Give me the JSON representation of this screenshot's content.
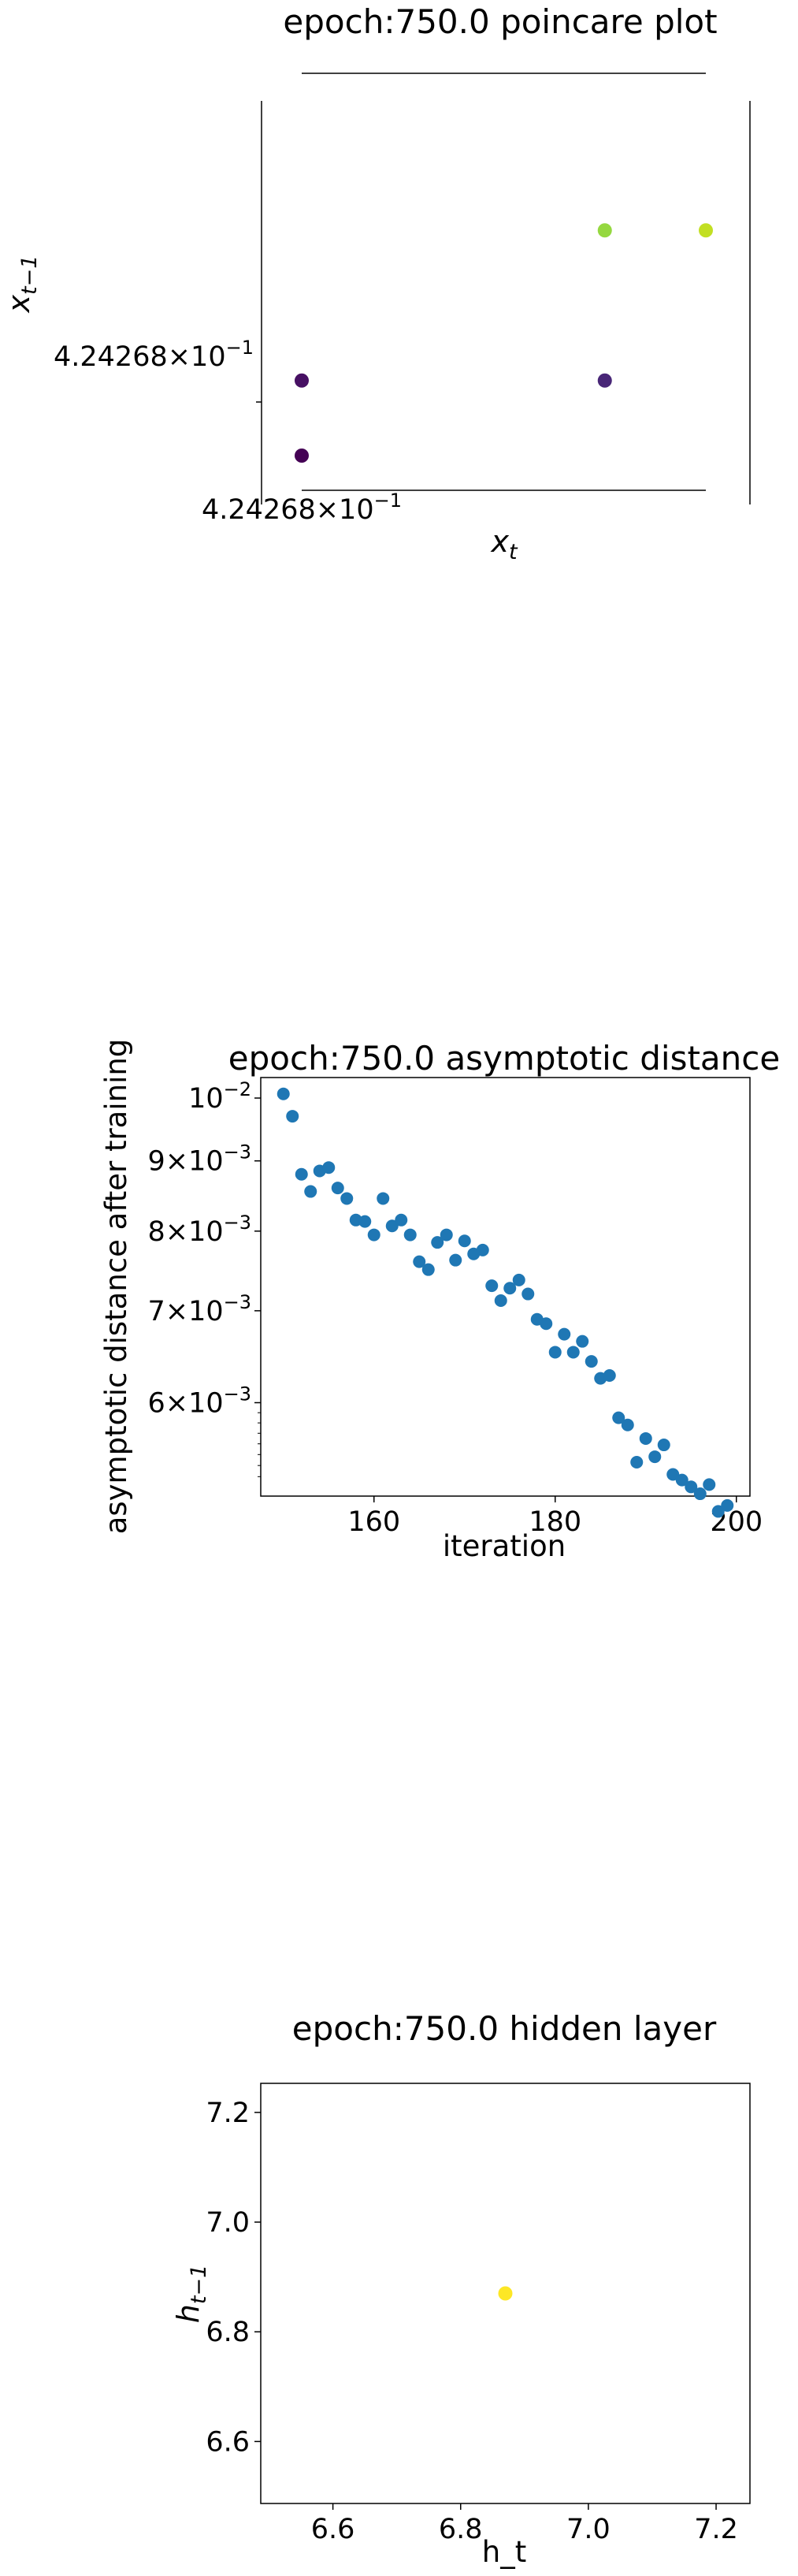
{
  "chart_data": [
    {
      "type": "scatter",
      "title": "epoch:750.0 poincare plot",
      "xlabel": "x",
      "xlabel_sub": "t",
      "ylabel": "x",
      "ylabel_sub": "t−1",
      "x_tick_label": "4.24268×10",
      "x_tick_exp": "−1",
      "y_tick_label": "4.24268×10",
      "y_tick_exp": "−1",
      "xlim": [
        0,
        1
      ],
      "ylim": [
        0,
        1
      ],
      "grid": false,
      "points": [
        {
          "x": 0.0,
          "y": 0.0,
          "color": "#440154"
        },
        {
          "x": 0.0,
          "y": 0.25,
          "color": "#471063"
        },
        {
          "x": 0.75,
          "y": 0.25,
          "color": "#482677"
        },
        {
          "x": 0.75,
          "y": 0.75,
          "color": "#95d840"
        },
        {
          "x": 1.0,
          "y": 0.75,
          "color": "#c2df23"
        }
      ]
    },
    {
      "type": "scatter",
      "title": "epoch:750.0 asymptotic distance",
      "xlabel": "iteration",
      "ylabel": "asymptotic distance after training",
      "xlim": [
        147.5,
        201.5
      ],
      "ylim": [
        0.00513,
        0.01035
      ],
      "yscale": "log",
      "x_ticks": [
        160,
        180,
        200
      ],
      "y_ticks": [
        {
          "value": 0.01,
          "mantissa": "10",
          "exp": "−2"
        },
        {
          "value": 0.009,
          "mantissa": "9×10",
          "exp": "−3"
        },
        {
          "value": 0.008,
          "mantissa": "8×10",
          "exp": "−3"
        },
        {
          "value": 0.007,
          "mantissa": "7×10",
          "exp": "−3"
        },
        {
          "value": 0.006,
          "mantissa": "6×10",
          "exp": "−3"
        }
      ],
      "color": "#1f77b4",
      "grid": false,
      "x": [
        150,
        151,
        152,
        153,
        154,
        155,
        156,
        157,
        158,
        159,
        160,
        161,
        162,
        163,
        164,
        165,
        166,
        167,
        168,
        169,
        170,
        171,
        172,
        173,
        174,
        175,
        176,
        177,
        178,
        179,
        180,
        181,
        182,
        183,
        184,
        185,
        186,
        187,
        188,
        189,
        190,
        191,
        192,
        193,
        194,
        195,
        196,
        197,
        198,
        199
      ],
      "y": [
        0.01007,
        0.0097,
        0.0088,
        0.00855,
        0.00885,
        0.0089,
        0.0086,
        0.00845,
        0.00815,
        0.00813,
        0.00795,
        0.00845,
        0.00807,
        0.00815,
        0.00795,
        0.0076,
        0.0075,
        0.00785,
        0.00795,
        0.00762,
        0.00787,
        0.0077,
        0.00775,
        0.0073,
        0.00712,
        0.00727,
        0.00737,
        0.0072,
        0.0069,
        0.00685,
        0.00653,
        0.00673,
        0.00653,
        0.00665,
        0.00643,
        0.00625,
        0.00628,
        0.00585,
        0.00578,
        0.00543,
        0.00565,
        0.00548,
        0.00559,
        0.00532,
        0.00527,
        0.00521,
        0.00515,
        0.00523,
        0.005,
        0.00505
      ]
    },
    {
      "type": "scatter",
      "title": "epoch:750.0 hidden layer",
      "xlabel": "h_t",
      "ylabel": "h",
      "ylabel_sub": "t−1",
      "xlim": [
        6.487,
        7.253
      ],
      "ylim": [
        6.487,
        7.253
      ],
      "x_ticks": [
        "6.6",
        "6.8",
        "7.0",
        "7.2"
      ],
      "y_ticks": [
        "7.2",
        "7.0",
        "6.8",
        "6.6"
      ],
      "grid": false,
      "points": [
        {
          "x": 6.87,
          "y": 6.87,
          "color": "#fde725"
        }
      ]
    }
  ]
}
